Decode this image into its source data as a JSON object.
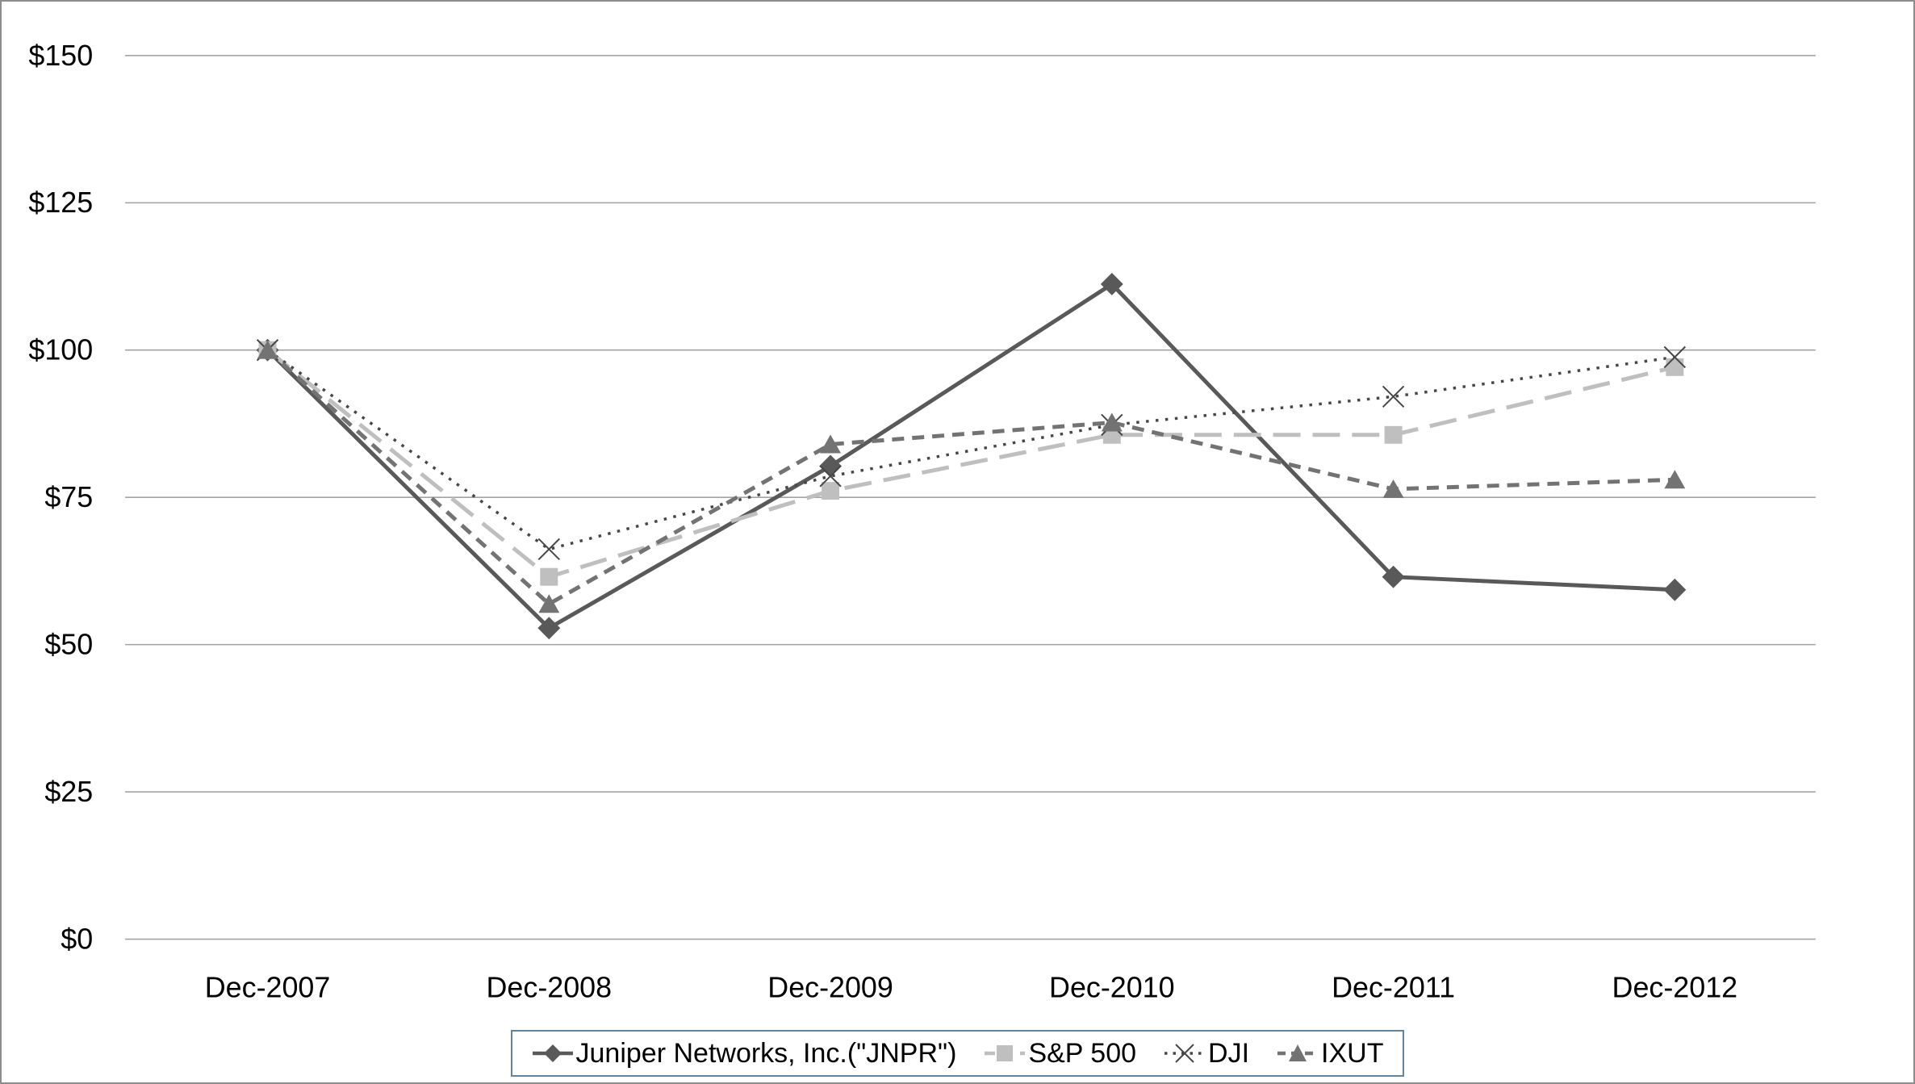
{
  "chart_data": {
    "type": "line",
    "title": "",
    "xlabel": "",
    "ylabel": "",
    "ylim": [
      0,
      150
    ],
    "y_tick_values": [
      0,
      25,
      50,
      75,
      100,
      125,
      150
    ],
    "y_tick_labels": [
      "$0",
      "$25",
      "$50",
      "$75",
      "$100",
      "$125",
      "$150"
    ],
    "grid": "horizontal",
    "legend_position": "bottom",
    "categories": [
      "Dec-2007",
      "Dec-2008",
      "Dec-2009",
      "Dec-2010",
      "Dec-2011",
      "Dec-2012"
    ],
    "series": [
      {
        "name": "Juniper Networks, Inc.(\"JNPR\")",
        "marker": "diamond",
        "line_style": "solid",
        "color": "#595959",
        "values": [
          100,
          52.8,
          80.3,
          111.2,
          61.5,
          59.3
        ]
      },
      {
        "name": "S&P 500",
        "marker": "square",
        "line_style": "long-dash",
        "color": "#bfbfbf",
        "values": [
          100,
          61.5,
          76.1,
          85.6,
          85.6,
          97.1
        ]
      },
      {
        "name": "DJI",
        "marker": "x",
        "line_style": "dotted",
        "color": "#474747",
        "values": [
          100,
          66.2,
          78.6,
          87.3,
          92.1,
          98.8
        ]
      },
      {
        "name": "IXUT",
        "marker": "triangle",
        "line_style": "short-dash",
        "color": "#737373",
        "values": [
          100,
          56.9,
          84.0,
          87.7,
          76.4,
          78.0
        ]
      }
    ]
  },
  "colors": {
    "background": "#ffffff",
    "gridline": "#a3a3a3",
    "figure_border": "#8c8c8c",
    "legend_border": "#62839b",
    "text": "#000000"
  }
}
